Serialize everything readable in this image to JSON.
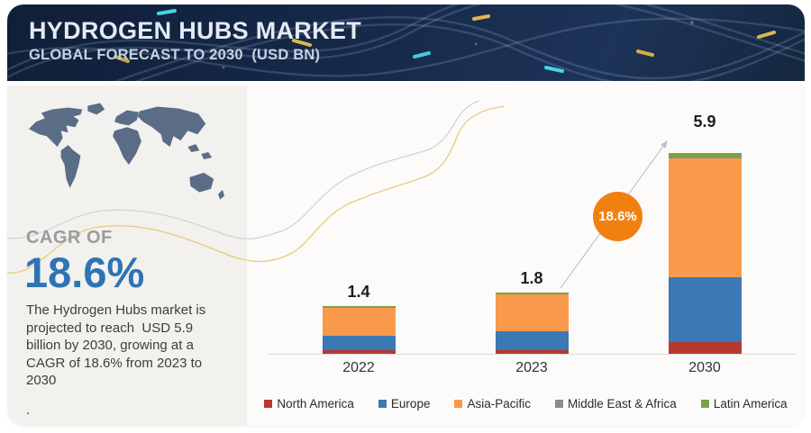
{
  "header": {
    "title": "HYDROGEN HUBS MARKET",
    "subtitle": "GLOBAL FORECAST TO 2030  (USD BN)"
  },
  "sidebar": {
    "cagr_label": "CAGR OF",
    "cagr_value": "18.6%",
    "description": "The Hydrogen Hubs market is projected to reach  USD 5.9 billion by 2030, growing at a CAGR of 18.6% from 2023 to 2030",
    "footnote": "."
  },
  "chart": {
    "growth_badge": "18.6%"
  },
  "chart_data": {
    "type": "bar",
    "stacked": true,
    "title": "HYDROGEN HUBS MARKET",
    "subtitle": "GLOBAL FORECAST TO 2030 (USD BN)",
    "unit": "USD BN",
    "categories": [
      "2022",
      "2023",
      "2030"
    ],
    "series": [
      {
        "name": "North America",
        "color": "#b6382f",
        "values": [
          0.1,
          0.1,
          0.34
        ]
      },
      {
        "name": "Europe",
        "color": "#3c78b4",
        "values": [
          0.43,
          0.56,
          1.9
        ]
      },
      {
        "name": "Asia-Pacific",
        "color": "#f9994c",
        "values": [
          0.81,
          1.09,
          3.5
        ]
      },
      {
        "name": "Middle East & Africa",
        "color": "#8c8c8c",
        "values": [
          0.01,
          0.01,
          0.03
        ]
      },
      {
        "name": "Latin America",
        "color": "#79a146",
        "values": [
          0.05,
          0.04,
          0.13
        ]
      }
    ],
    "totals": [
      "1.4",
      "1.8",
      "5.9"
    ],
    "ylim": [
      0,
      6.2
    ],
    "grid": false,
    "legend_position": "bottom",
    "annotations": {
      "growth_badge": "18.6%",
      "arrow": "from 2023 bar toward 5.9 total of 2030"
    }
  },
  "colors": {
    "header_bg": "#16294a",
    "panel_bg": "#f2f1ee",
    "map_fill": "#5b6c86",
    "cagr_blue": "#2e74b5",
    "badge_orange": "#f28011",
    "axis_line": "#dcdcdc",
    "wave_yellow": "#e7c973",
    "wave_gray": "#d0cdd6"
  }
}
